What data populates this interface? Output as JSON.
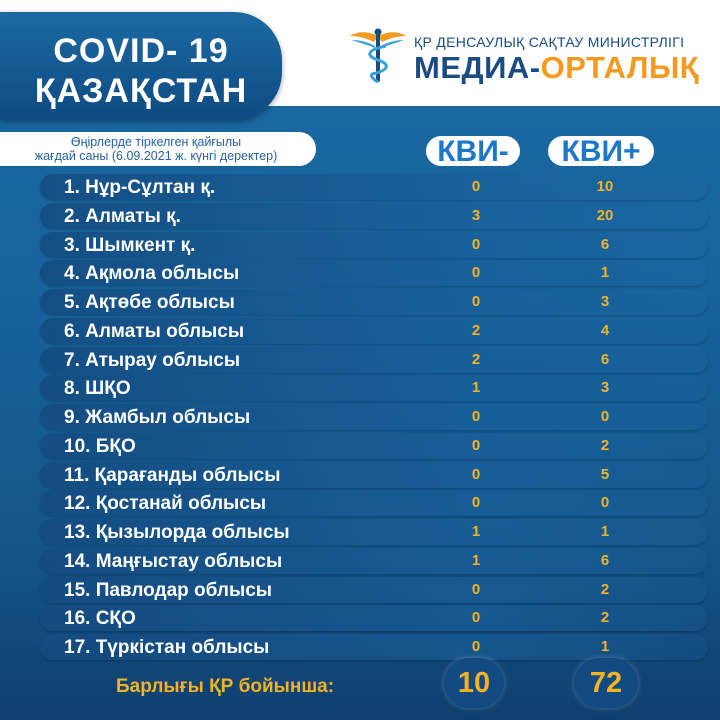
{
  "header": {
    "title_line1": "COVID- 19",
    "title_line2": "ҚАЗАҚСТАН",
    "ministry": "ҚР ДЕНСАУЛЫҚ САҚТАУ МИНИСТРЛІГІ",
    "media_part1": "МЕДИА-",
    "media_part2": "ОРТАЛЫҚ",
    "logo_icon": "caduceus-icon"
  },
  "subtitle": {
    "line1": "Өңірлерде тіркелген қайғылы",
    "line2": "жағдай саны (6.09.2021 ж. күнгі деректер)"
  },
  "columns": [
    "КВИ-",
    "КВИ+"
  ],
  "rows": [
    {
      "label": "1. Нұр-Сұлтан қ.",
      "kvi_minus": "0",
      "kvi_plus": "10"
    },
    {
      "label": "2. Алматы қ.",
      "kvi_minus": "3",
      "kvi_plus": "20"
    },
    {
      "label": "3. Шымкент қ.",
      "kvi_minus": "0",
      "kvi_plus": "6"
    },
    {
      "label": "4. Ақмола облысы",
      "kvi_minus": "0",
      "kvi_plus": "1"
    },
    {
      "label": "5. Ақтөбе облысы",
      "kvi_minus": "0",
      "kvi_plus": "3"
    },
    {
      "label": "6. Алматы облысы",
      "kvi_minus": "2",
      "kvi_plus": "4"
    },
    {
      "label": "7. Атырау облысы",
      "kvi_minus": "2",
      "kvi_plus": "6"
    },
    {
      "label": "8. ШҚО",
      "kvi_minus": "1",
      "kvi_plus": "3"
    },
    {
      "label": "9. Жамбыл облысы",
      "kvi_minus": "0",
      "kvi_plus": "0"
    },
    {
      "label": "10. БҚО",
      "kvi_minus": "0",
      "kvi_plus": "2"
    },
    {
      "label": "11. Қарағанды облысы",
      "kvi_minus": "0",
      "kvi_plus": "5"
    },
    {
      "label": "12. Қостанай облысы",
      "kvi_minus": "0",
      "kvi_plus": "0"
    },
    {
      "label": "13. Қызылорда облысы",
      "kvi_minus": "1",
      "kvi_plus": "1"
    },
    {
      "label": "14. Маңғыстау облысы",
      "kvi_minus": "1",
      "kvi_plus": "6"
    },
    {
      "label": "15. Павлодар облысы",
      "kvi_minus": "0",
      "kvi_plus": "2"
    },
    {
      "label": "16. СҚО",
      "kvi_minus": "0",
      "kvi_plus": "2"
    },
    {
      "label": "17. Түркістан облысы",
      "kvi_minus": "0",
      "kvi_plus": "1"
    }
  ],
  "total": {
    "label": "Барлығы ҚР бойынша:",
    "kvi_minus": "10",
    "kvi_plus": "72"
  },
  "colors": {
    "accent": "#f5b324",
    "brand_blue": "#1a4c83",
    "brand_orange": "#f39a1f",
    "header_blue": "#1d78c9"
  }
}
